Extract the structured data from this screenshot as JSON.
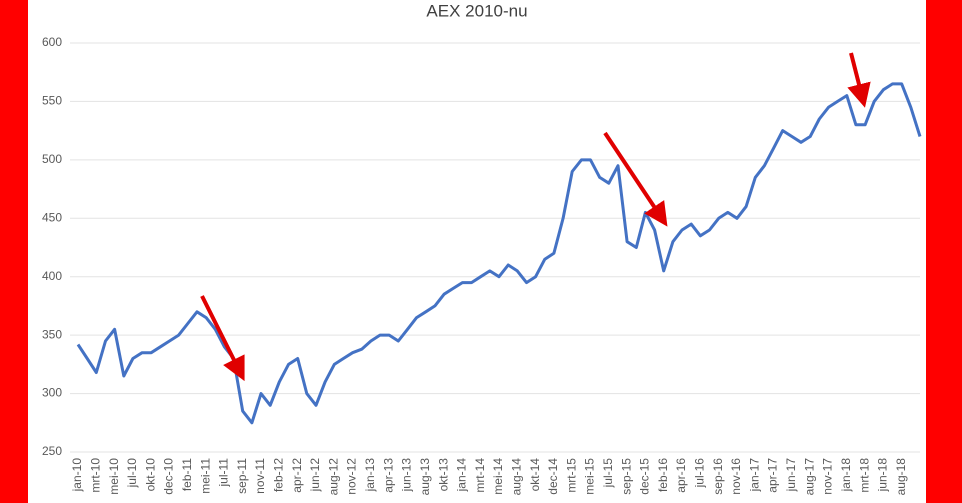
{
  "chart_data": {
    "type": "line",
    "title": "AEX 2010-nu",
    "categories": [
      "jan-10",
      null,
      "mrt-10",
      null,
      "mei-10",
      null,
      "jul-10",
      null,
      "okt-10",
      null,
      "dec-10",
      null,
      "feb-11",
      null,
      "mei-11",
      null,
      "jul-11",
      null,
      "sep-11",
      null,
      "nov-11",
      null,
      "feb-12",
      null,
      "apr-12",
      null,
      "jun-12",
      null,
      "aug-12",
      null,
      "nov-12",
      null,
      "jan-13",
      null,
      "apr-13",
      null,
      "jun-13",
      null,
      "aug-13",
      null,
      "okt-13",
      null,
      "jan-14",
      null,
      "mrt-14",
      null,
      "mei-14",
      null,
      "aug-14",
      null,
      "okt-14",
      null,
      "dec-14",
      null,
      "mrt-15",
      null,
      "mei-15",
      null,
      "jul-15",
      null,
      "sep-15",
      null,
      "dec-15",
      null,
      "feb-16",
      null,
      "apr-16",
      null,
      "jul-16",
      null,
      "sep-16",
      null,
      "nov-16",
      null,
      "jan-17",
      null,
      "apr-17",
      null,
      "jun-17",
      null,
      "aug-17",
      null,
      "nov-17",
      null,
      "jan-18",
      null,
      "mrt-18",
      null,
      "jun-18",
      null,
      "aug-18",
      null,
      null
    ],
    "series": [
      {
        "name": "AEX",
        "color": "#4472c4",
        "values": [
          342,
          330,
          318,
          345,
          355,
          315,
          330,
          335,
          335,
          340,
          345,
          350,
          360,
          370,
          365,
          355,
          340,
          330,
          285,
          275,
          300,
          290,
          310,
          325,
          330,
          300,
          290,
          310,
          325,
          330,
          335,
          338,
          345,
          350,
          350,
          345,
          355,
          365,
          370,
          375,
          385,
          390,
          395,
          395,
          400,
          405,
          400,
          410,
          405,
          395,
          400,
          415,
          420,
          450,
          490,
          500,
          500,
          485,
          480,
          495,
          430,
          425,
          455,
          440,
          405,
          430,
          440,
          445,
          435,
          440,
          450,
          455,
          450,
          460,
          485,
          495,
          510,
          525,
          520,
          515,
          520,
          535,
          545,
          550,
          555,
          530,
          530,
          550,
          560,
          565,
          565,
          545,
          520
        ]
      }
    ],
    "ylim": [
      250,
      600
    ],
    "yticks": [
      250,
      300,
      350,
      400,
      450,
      500,
      550,
      600
    ],
    "grid": true
  }
}
